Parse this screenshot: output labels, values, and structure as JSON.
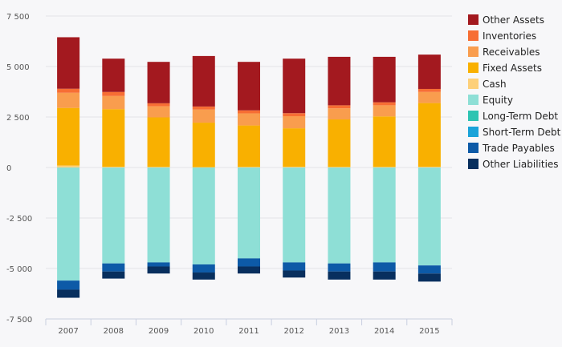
{
  "chart_data": {
    "type": "bar",
    "stacked": true,
    "categories": [
      "2007",
      "2008",
      "2009",
      "2010",
      "2011",
      "2012",
      "2013",
      "2014",
      "2015"
    ],
    "ylim": [
      -7500,
      7500
    ],
    "yticks": [
      7500,
      5000,
      2500,
      0,
      -2500,
      -5000,
      -7500
    ],
    "ytick_labels": [
      "7 500",
      "5 000",
      "2 500",
      "0",
      "-2 500",
      "-5 000",
      "-7 500"
    ],
    "grid": true,
    "legend_position": "right",
    "series": [
      {
        "name": "Cash",
        "color": "#fdd07a",
        "values": [
          100,
          40,
          30,
          20,
          30,
          40,
          30,
          30,
          40
        ]
      },
      {
        "name": "Fixed Assets",
        "color": "#f9b000",
        "values": [
          2850,
          2850,
          2450,
          2200,
          2050,
          1900,
          2350,
          2500,
          3150
        ]
      },
      {
        "name": "Receivables",
        "color": "#f99d4e",
        "values": [
          750,
          650,
          550,
          650,
          600,
          600,
          550,
          550,
          550
        ]
      },
      {
        "name": "Inventories",
        "color": "#f76e34",
        "values": [
          200,
          200,
          150,
          150,
          150,
          150,
          150,
          150,
          150
        ]
      },
      {
        "name": "Other Assets",
        "color": "#a3191f",
        "values": [
          2550,
          1650,
          2050,
          2500,
          2400,
          2700,
          2400,
          2250,
          1700
        ]
      },
      {
        "name": "Equity",
        "color": "#8edfd6",
        "values": [
          -5600,
          -4750,
          -4700,
          -4800,
          -4500,
          -4700,
          -4750,
          -4700,
          -4850
        ]
      },
      {
        "name": "Long-Term Debt",
        "color": "#2dc4b2",
        "values": [
          0,
          0,
          0,
          0,
          0,
          0,
          0,
          0,
          0
        ]
      },
      {
        "name": "Short-Term Debt",
        "color": "#1aa3d9",
        "values": [
          0,
          0,
          0,
          0,
          0,
          0,
          0,
          0,
          0
        ]
      },
      {
        "name": "Trade Payables",
        "color": "#0d5aa7",
        "values": [
          -450,
          -400,
          -200,
          -400,
          -400,
          -400,
          -400,
          -450,
          -400
        ]
      },
      {
        "name": "Other Liabilities",
        "color": "#082f5e",
        "values": [
          -400,
          -350,
          -350,
          -350,
          -350,
          -350,
          -400,
          -400,
          -400
        ]
      }
    ],
    "legend_order": [
      "Other Assets",
      "Inventories",
      "Receivables",
      "Fixed Assets",
      "Cash",
      "Equity",
      "Long-Term Debt",
      "Short-Term Debt",
      "Trade Payables",
      "Other Liabilities"
    ]
  }
}
